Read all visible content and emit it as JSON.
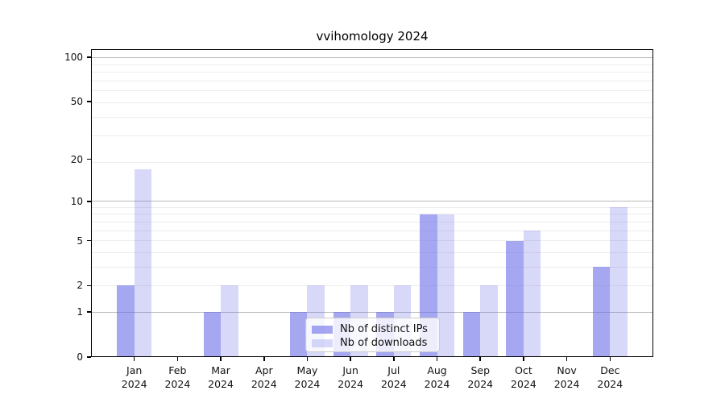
{
  "title": "vvihomology 2024",
  "chart_data": {
    "type": "bar",
    "title": "vvihomology 2024",
    "x_tick_labels": [
      "Jan\n2024",
      "Feb\n2024",
      "Mar\n2024",
      "Apr\n2024",
      "May\n2024",
      "Jun\n2024",
      "Jul\n2024",
      "Aug\n2024",
      "Sep\n2024",
      "Oct\n2024",
      "Nov\n2024",
      "Dec\n2024"
    ],
    "categories": [
      "Jan",
      "Feb",
      "Mar",
      "Apr",
      "May",
      "Jun",
      "Jul",
      "Aug",
      "Sep",
      "Oct",
      "Nov",
      "Dec"
    ],
    "year": "2024",
    "series": [
      {
        "name": "Nb of distinct IPs",
        "color": "rgba(105,108,232,0.60)",
        "color_hex_on_white": "#a5a7f1",
        "values": [
          2,
          0,
          1,
          0,
          1,
          1,
          1,
          8,
          1,
          5,
          0,
          3
        ]
      },
      {
        "name": "Nb of downloads",
        "color": "rgba(105,108,232,0.26)",
        "color_hex_on_white": "#d8d9f8",
        "values": [
          17,
          0,
          2,
          0,
          2,
          2,
          2,
          8,
          2,
          6,
          0,
          9
        ]
      }
    ],
    "y_axis": {
      "scale": "log10(1+v)",
      "ticks": [
        0,
        1,
        2,
        5,
        10,
        20,
        50,
        100
      ],
      "major_gridlines": [
        1,
        10,
        100
      ],
      "minor_gridlines": [
        2,
        3,
        4,
        5,
        6,
        7,
        8,
        9,
        19,
        29,
        39,
        49,
        59,
        69,
        79,
        89
      ],
      "ylim": [
        0,
        113
      ],
      "major_grid_color": "#b9b9b9",
      "minor_grid_color": "#ededed"
    },
    "legend": {
      "position": "lower center",
      "entries": [
        "Nb of distinct IPs",
        "Nb of downloads"
      ]
    },
    "grid": true,
    "background": "#ffffff"
  }
}
